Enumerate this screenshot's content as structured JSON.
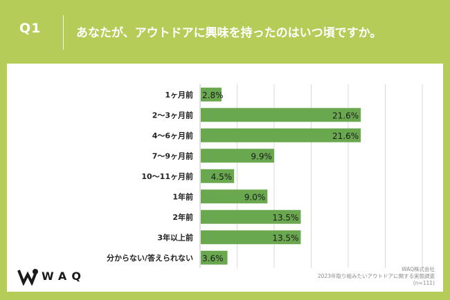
{
  "header": {
    "qnum": "Q1",
    "question": "あなたが、アウトドアに興味を持ったのはいつ頃ですか。"
  },
  "brand": {
    "logo_text": "WAQ"
  },
  "source": {
    "line1": "WAQ株式会社",
    "line2": "2023年取り組みたいアウトドアに関する実態調査",
    "line3": "(n=111)"
  },
  "colors": {
    "background": "#b6cc59",
    "bar": "#6aa84f",
    "panel": "#ffffff"
  },
  "chart_data": {
    "type": "bar",
    "orientation": "horizontal",
    "title": "",
    "xlabel": "",
    "ylabel": "",
    "categories": [
      "1ヶ月前",
      "2〜3ヶ月前",
      "4〜6ヶ月前",
      "7〜9ヶ月前",
      "10〜11ヶ月前",
      "1年前",
      "2年前",
      "3年以上前",
      "分からない/答えられない"
    ],
    "values": [
      2.8,
      21.6,
      21.6,
      9.9,
      4.5,
      9.0,
      13.5,
      13.5,
      3.6
    ],
    "value_labels": [
      "2.8%",
      "21.6%",
      "21.6%",
      "9.9%",
      "4.5%",
      "9.0%",
      "13.5%",
      "13.5%",
      "3.6%"
    ],
    "xlim": [
      0,
      30
    ],
    "grid": true
  }
}
